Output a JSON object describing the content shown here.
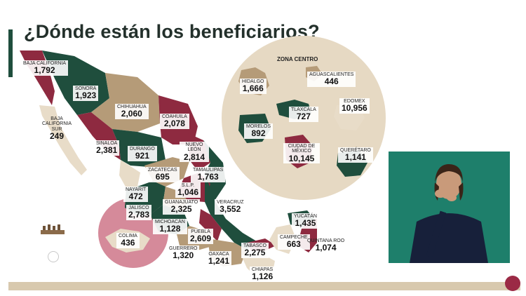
{
  "title": "¿Dónde están los beneficiarios?",
  "zone_title": "ZONA CENTRO",
  "colors": {
    "dark_green": "#1f4e3d",
    "burgundy": "#8e2a40",
    "tan": "#b59b78",
    "beige": "#e8dcc8",
    "zone_circle": "#e6d9c3",
    "colima_circle": "#d58a9a",
    "interpreter_bg": "#1e7f6b"
  },
  "states": [
    {
      "name": "BAJA CALIFORNIA",
      "value": "1,792"
    },
    {
      "name": "SONORA",
      "value": "1,923"
    },
    {
      "name": "CHIHUAHUA",
      "value": "2,060"
    },
    {
      "name": "BAJA CALIFORNIA SUR",
      "value": "249"
    },
    {
      "name": "SINALOA",
      "value": "2,381"
    },
    {
      "name": "DURANGO",
      "value": "921"
    },
    {
      "name": "COAHUILA",
      "value": "2,078"
    },
    {
      "name": "NUEVO LEÓN",
      "value": "2,814"
    },
    {
      "name": "TAMAULIPAS",
      "value": "1,763"
    },
    {
      "name": "ZACATECAS",
      "value": "695"
    },
    {
      "name": "NAYARIT",
      "value": "472"
    },
    {
      "name": "S.L.P.",
      "value": "1,046"
    },
    {
      "name": "JALISCO",
      "value": "2,783"
    },
    {
      "name": "GUANAJUATO",
      "value": "2,325"
    },
    {
      "name": "MICHOACÁN",
      "value": "1,128"
    },
    {
      "name": "COLIMA",
      "value": "436"
    },
    {
      "name": "VERACRUZ",
      "value": "3,552"
    },
    {
      "name": "PUEBLA",
      "value": "2,609"
    },
    {
      "name": "GUERRERO",
      "value": "1,320"
    },
    {
      "name": "OAXACA",
      "value": "1,241"
    },
    {
      "name": "TABASCO",
      "value": "2,275"
    },
    {
      "name": "CHIAPAS",
      "value": "1,126"
    },
    {
      "name": "CAMPECHE",
      "value": "663"
    },
    {
      "name": "YUCATÁN",
      "value": "1,435"
    },
    {
      "name": "QUINTANA ROO",
      "value": "1,074"
    }
  ],
  "zona_centro": [
    {
      "name": "HIDALGO",
      "value": "1,666"
    },
    {
      "name": "AGUASCALIENTES",
      "value": "446"
    },
    {
      "name": "TLAXCALA",
      "value": "727"
    },
    {
      "name": "EDOMEX",
      "value": "10,956"
    },
    {
      "name": "MORELOS",
      "value": "892"
    },
    {
      "name": "CIUDAD DE MÉXICO",
      "value": "10,145"
    },
    {
      "name": "QUERÉTARO",
      "value": "1,141"
    }
  ]
}
